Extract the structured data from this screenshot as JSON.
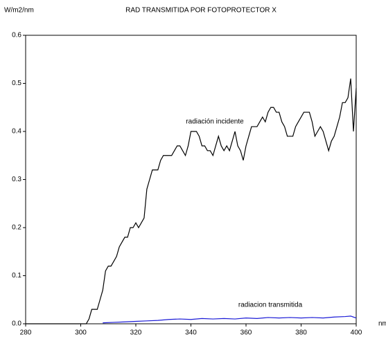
{
  "chart_data": {
    "type": "line",
    "title": "RAD TRANSMITIDA POR  FOTOPROTECTOR X",
    "y_label": "W/m2/nm",
    "x_label": "nm",
    "annotations": [
      "radiación incidente",
      "radiacion transmitida"
    ],
    "series": [
      {
        "name": "radiación incidente",
        "color": "#000000",
        "x": [
          280,
          302,
          303,
          304,
          306,
          307,
          308,
          309,
          310,
          311,
          312,
          313,
          314,
          315,
          316,
          317,
          318,
          319,
          320,
          321,
          322,
          323,
          324,
          325,
          326,
          327,
          328,
          329,
          330,
          332,
          333,
          334,
          335,
          336,
          337,
          338,
          339,
          340,
          341,
          342,
          343,
          344,
          345,
          346,
          347,
          348,
          349,
          350,
          351,
          352,
          353,
          354,
          355,
          356,
          357,
          358,
          359,
          360,
          361,
          362,
          363,
          364,
          365,
          366,
          367,
          368,
          369,
          370,
          371,
          372,
          373,
          374,
          375,
          376,
          377,
          378,
          379,
          380,
          381,
          382,
          383,
          384,
          385,
          386,
          387,
          388,
          389,
          390,
          391,
          392,
          393,
          394,
          395,
          396,
          397,
          398,
          399,
          400
        ],
        "values": [
          0,
          0,
          0.01,
          0.03,
          0.03,
          0.05,
          0.07,
          0.11,
          0.12,
          0.12,
          0.13,
          0.14,
          0.16,
          0.17,
          0.18,
          0.18,
          0.2,
          0.2,
          0.21,
          0.2,
          0.21,
          0.22,
          0.28,
          0.3,
          0.32,
          0.32,
          0.32,
          0.34,
          0.35,
          0.35,
          0.35,
          0.36,
          0.37,
          0.37,
          0.36,
          0.35,
          0.37,
          0.4,
          0.4,
          0.4,
          0.39,
          0.37,
          0.37,
          0.36,
          0.36,
          0.35,
          0.37,
          0.39,
          0.37,
          0.36,
          0.37,
          0.36,
          0.38,
          0.4,
          0.37,
          0.36,
          0.34,
          0.37,
          0.39,
          0.41,
          0.41,
          0.41,
          0.42,
          0.43,
          0.42,
          0.44,
          0.45,
          0.45,
          0.44,
          0.44,
          0.42,
          0.41,
          0.39,
          0.39,
          0.39,
          0.41,
          0.42,
          0.43,
          0.44,
          0.44,
          0.44,
          0.42,
          0.39,
          0.4,
          0.41,
          0.4,
          0.38,
          0.36,
          0.38,
          0.39,
          0.41,
          0.43,
          0.46,
          0.46,
          0.47,
          0.51,
          0.4,
          0.49
        ]
      },
      {
        "name": "radiacion transmitida",
        "color": "#1a1ad6",
        "x": [
          308,
          312,
          316,
          320,
          324,
          328,
          332,
          336,
          340,
          344,
          348,
          352,
          356,
          360,
          364,
          368,
          372,
          376,
          380,
          384,
          388,
          392,
          396,
          398,
          400
        ],
        "values": [
          0.002,
          0.003,
          0.004,
          0.005,
          0.006,
          0.007,
          0.009,
          0.01,
          0.009,
          0.011,
          0.01,
          0.011,
          0.01,
          0.012,
          0.011,
          0.013,
          0.012,
          0.013,
          0.012,
          0.013,
          0.012,
          0.014,
          0.015,
          0.016,
          0.012
        ]
      }
    ],
    "xlim": [
      280,
      400
    ],
    "xticks": [
      280,
      300,
      320,
      340,
      360,
      380,
      400
    ],
    "ylim": [
      0,
      0.6
    ],
    "yticks": [
      {
        "value": 0,
        "label": "0.0"
      },
      0.1,
      0.2,
      0.3,
      0.4,
      0.5,
      0.6
    ]
  }
}
